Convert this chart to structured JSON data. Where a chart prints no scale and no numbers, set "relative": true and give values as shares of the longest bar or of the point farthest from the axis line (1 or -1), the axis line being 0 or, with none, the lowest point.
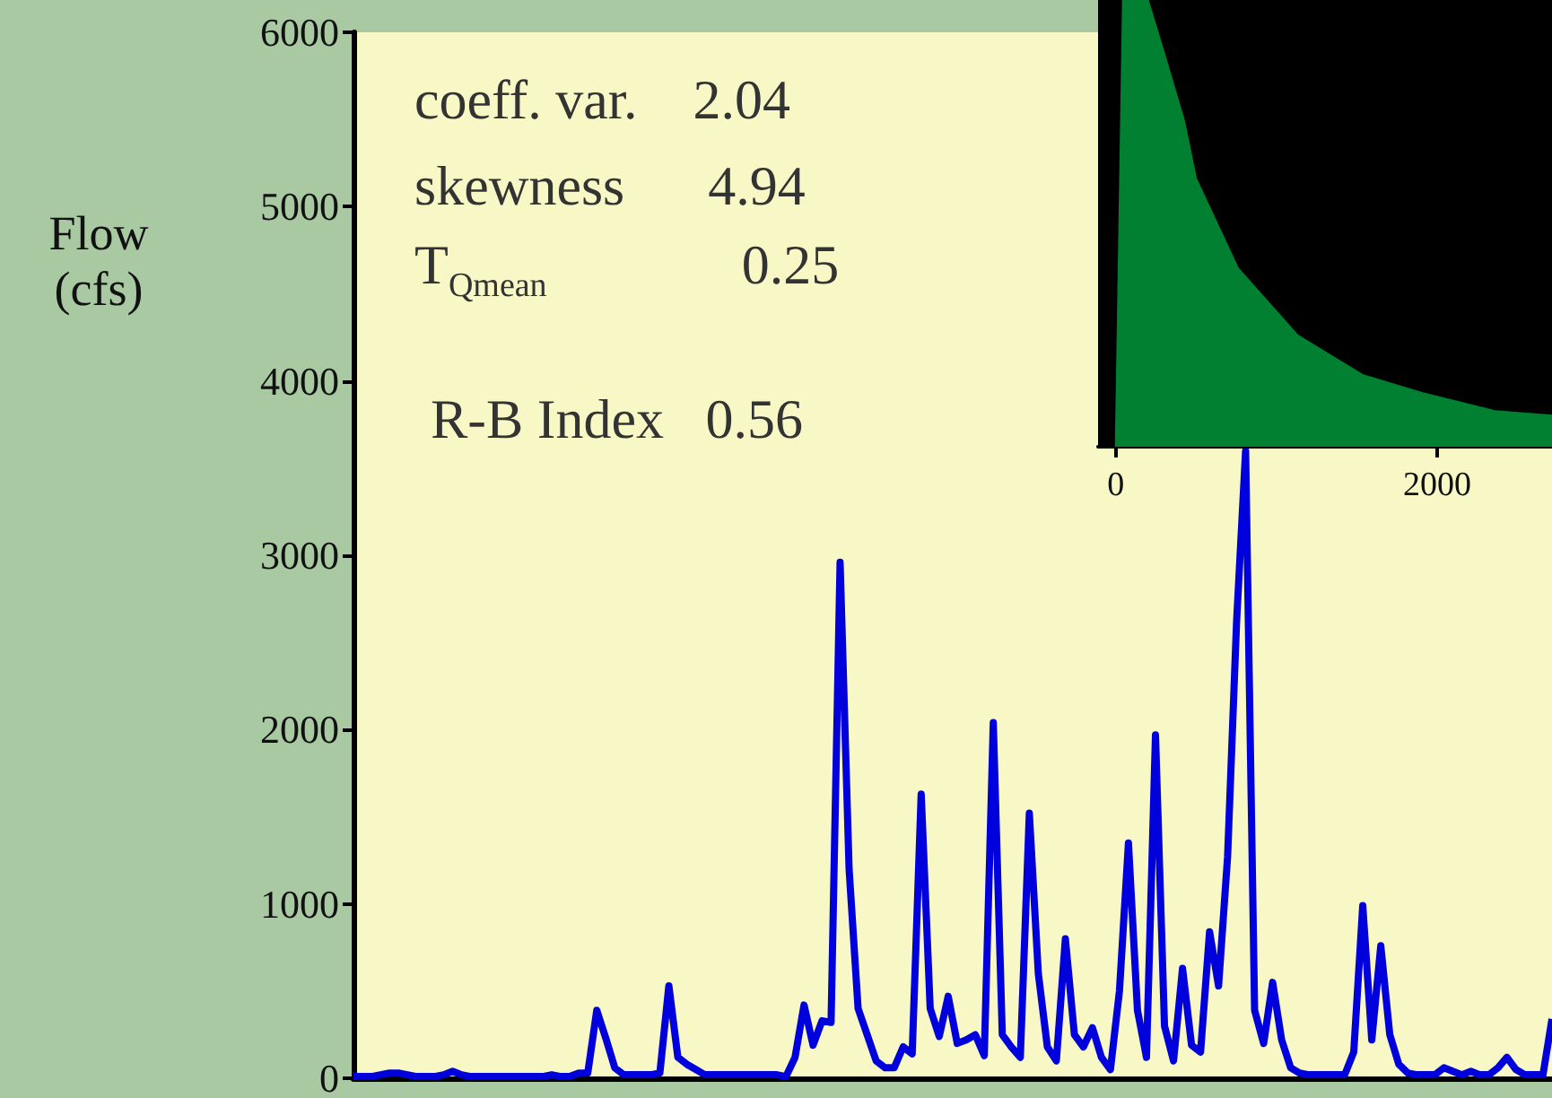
{
  "chart_data": [
    {
      "type": "line",
      "ylabel": "Flow (cfs)",
      "annotations": [
        "coeff. var.    2.04",
        "skewness      4.94",
        "T$_{Qmean}$              0.25",
        "R-B Index   0.56"
      ],
      "categories": [
        null,
        null,
        null,
        null,
        null,
        null,
        null,
        null,
        null,
        null,
        null,
        null,
        null,
        null,
        null,
        null,
        null,
        null,
        null,
        null,
        null,
        null,
        null,
        null,
        null,
        null,
        null,
        null,
        null,
        null,
        null,
        null,
        null,
        null,
        null,
        null,
        null,
        null,
        null,
        null,
        null,
        null,
        null,
        null,
        null,
        null,
        null,
        null,
        null,
        null,
        null,
        null,
        null,
        null,
        null,
        null,
        null,
        null,
        null,
        null,
        null,
        null,
        null,
        null,
        null,
        null,
        null,
        null,
        null,
        null,
        null,
        null,
        null,
        null,
        null,
        null,
        null,
        null,
        null,
        null,
        null,
        null,
        null,
        null,
        null,
        null,
        null,
        null,
        null,
        null,
        null,
        null,
        null,
        null,
        null,
        null,
        null,
        null,
        null,
        null,
        null,
        null,
        null,
        null,
        null,
        null,
        null,
        null,
        null,
        null,
        null,
        null,
        null,
        null,
        null,
        null,
        null,
        null,
        null,
        null,
        null,
        null,
        null,
        null,
        null,
        null,
        null,
        null,
        null,
        null,
        null,
        null,
        null,
        null
      ],
      "series": [
        {
          "color": "#0000dd",
          "values": [
            10,
            10,
            10,
            20,
            30,
            30,
            20,
            10,
            10,
            10,
            20,
            40,
            20,
            10,
            10,
            10,
            10,
            10,
            10,
            10,
            10,
            10,
            20,
            10,
            10,
            30,
            30,
            390,
            230,
            60,
            20,
            20,
            20,
            20,
            30,
            530,
            120,
            80,
            50,
            20,
            20,
            20,
            20,
            20,
            20,
            20,
            20,
            20,
            10,
            120,
            420,
            190,
            330,
            320,
            2960,
            1200,
            400,
            250,
            100,
            60,
            60,
            180,
            140,
            1630,
            400,
            240,
            470,
            200,
            220,
            250,
            130,
            2040,
            250,
            180,
            120,
            1520,
            600,
            180,
            100,
            800,
            250,
            180,
            290,
            120,
            50,
            500,
            1350,
            390,
            120,
            1970,
            300,
            100,
            630,
            190,
            150,
            840,
            530,
            1270,
            2620,
            3600,
            390,
            200,
            550,
            220,
            60,
            30,
            20,
            20,
            20,
            20,
            20,
            150,
            990,
            220,
            760,
            250,
            80,
            30,
            20,
            20,
            20,
            60,
            40,
            20,
            40,
            20,
            20,
            60,
            120,
            50,
            20,
            20,
            20,
            340
          ]
        }
      ],
      "ylim": [
        0,
        6000
      ],
      "yticks": [
        0,
        1000,
        2000,
        3000,
        4000,
        5000,
        6000
      ],
      "tick_labels": "y"
    },
    {
      "type": "area",
      "relative": true,
      "x": [
        0,
        45,
        200,
        310,
        425,
        500,
        760,
        1130,
        1540,
        1910,
        2360,
        2715
      ],
      "series": [
        {
          "color": "#008030",
          "values": [
            0,
            1,
            1,
            0.87,
            0.73,
            0.6,
            0.4,
            0.25,
            0.16,
            0.12,
            0.08,
            0.07
          ]
        }
      ],
      "xlim": [
        -110,
        2715
      ],
      "xticks": [
        0,
        2000
      ],
      "tick_labels": "x"
    }
  ]
}
